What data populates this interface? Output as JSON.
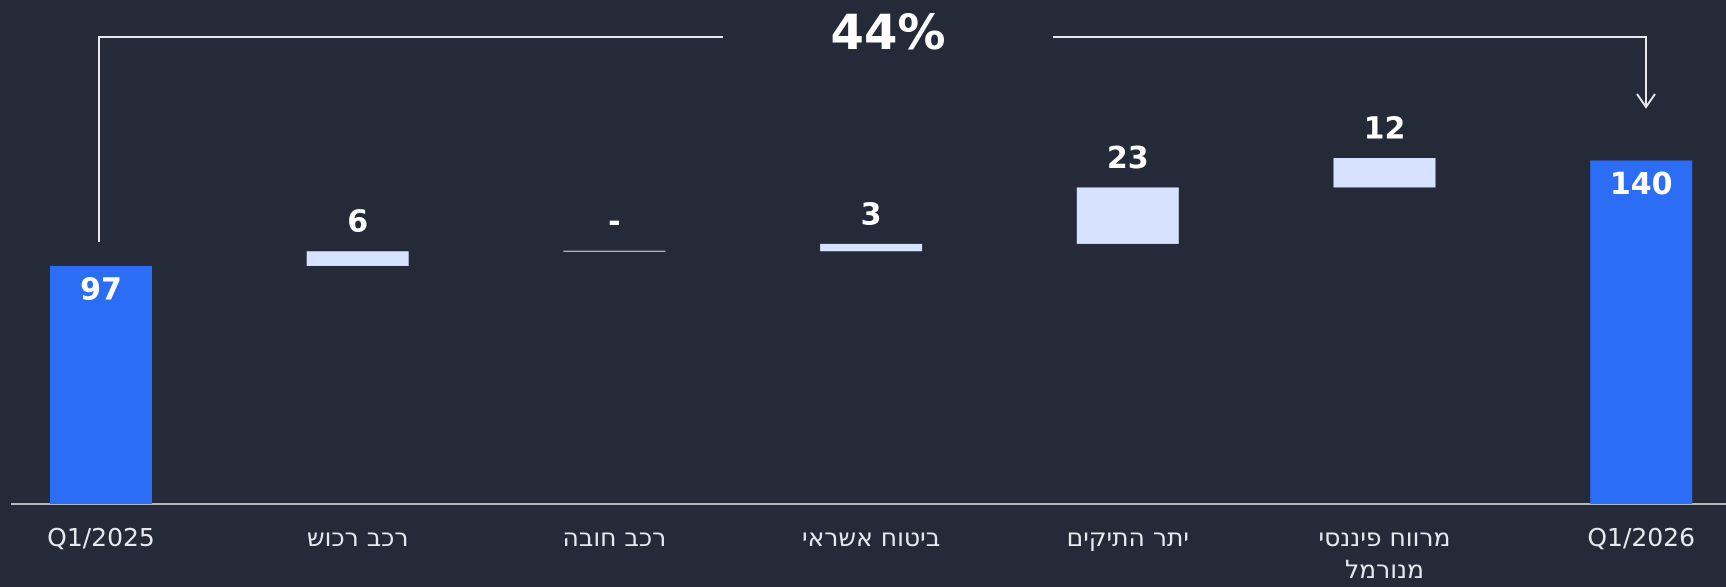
{
  "chart_data": {
    "type": "waterfall",
    "annotation": "44%",
    "categories": [
      "Q1/2025",
      "רכב רכוש",
      "רכב חובה",
      "ביטוח אשראי",
      "יתר התיקים",
      "מרווח פיננסי מנורמל",
      "Q1/2026"
    ],
    "values": [
      97,
      6,
      0,
      3,
      23,
      12,
      140
    ],
    "value_labels": [
      "97",
      "6",
      "-",
      "3",
      "23",
      "12",
      "140"
    ],
    "measure": [
      "absolute",
      "relative",
      "relative",
      "relative",
      "relative",
      "relative",
      "total"
    ],
    "total_color": "#2b6ef5",
    "increase_color": "#d6e2ff"
  }
}
